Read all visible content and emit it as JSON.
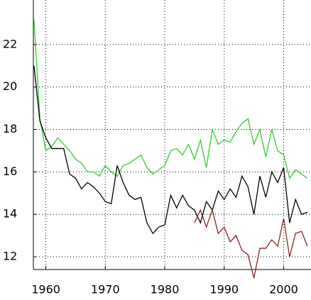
{
  "chart_data": {
    "type": "line",
    "x": [
      1958,
      1959,
      1960,
      1961,
      1962,
      1963,
      1964,
      1965,
      1966,
      1967,
      1968,
      1969,
      1970,
      1971,
      1972,
      1973,
      1974,
      1975,
      1976,
      1977,
      1978,
      1979,
      1980,
      1981,
      1982,
      1983,
      1984,
      1985,
      1986,
      1987,
      1988,
      1989,
      1990,
      1991,
      1992,
      1993,
      1994,
      1995,
      1996,
      1997,
      1998,
      1999,
      2000,
      2001,
      2002,
      2003,
      2004
    ],
    "series": [
      {
        "color": "#33cc33",
        "values": [
          23.2,
          18.5,
          17.0,
          17.2,
          17.6,
          17.3,
          17.0,
          16.6,
          16.4,
          16.0,
          16.0,
          15.8,
          16.3,
          16.0,
          15.8,
          16.3,
          16.4,
          16.6,
          16.8,
          16.2,
          15.9,
          16.1,
          16.3,
          17.0,
          17.1,
          16.8,
          17.3,
          16.6,
          17.5,
          16.2,
          18.0,
          17.3,
          17.5,
          17.4,
          17.9,
          18.3,
          18.5,
          17.3,
          18.0,
          16.7,
          18.0,
          17.0,
          16.8,
          15.7,
          16.1,
          15.9,
          15.7
        ]
      },
      {
        "color": "#000000",
        "values": [
          21.0,
          18.4,
          17.6,
          17.1,
          17.1,
          17.1,
          15.9,
          15.7,
          15.2,
          15.5,
          15.3,
          15.0,
          14.6,
          14.5,
          16.3,
          15.5,
          14.9,
          14.7,
          14.8,
          13.6,
          13.1,
          13.4,
          13.5,
          14.9,
          14.3,
          14.9,
          14.4,
          14.2,
          13.6,
          14.6,
          14.2,
          15.1,
          14.7,
          15.2,
          14.8,
          15.8,
          15.3,
          14.0,
          15.8,
          14.8,
          16.0,
          15.5,
          16.2,
          13.6,
          14.7,
          14.0,
          14.1
        ]
      },
      {
        "color": "#8b2323",
        "values": [
          null,
          null,
          null,
          null,
          null,
          null,
          null,
          null,
          null,
          null,
          null,
          null,
          null,
          null,
          null,
          null,
          null,
          null,
          null,
          null,
          null,
          null,
          null,
          null,
          null,
          null,
          null,
          13.6,
          14.2,
          13.4,
          14.2,
          13.1,
          13.4,
          12.7,
          13.0,
          12.3,
          12.1,
          11.0,
          12.4,
          12.4,
          12.8,
          12.5,
          13.8,
          12.0,
          13.1,
          13.2,
          12.5
        ]
      }
    ],
    "xlim": [
      1957.9,
      2004.6
    ],
    "xticks": [
      1960,
      1970,
      1980,
      1990,
      2000
    ],
    "ylim": [
      11.4,
      24.1
    ],
    "yticks": [
      12,
      14,
      16,
      18,
      20,
      22
    ],
    "grid": true
  }
}
